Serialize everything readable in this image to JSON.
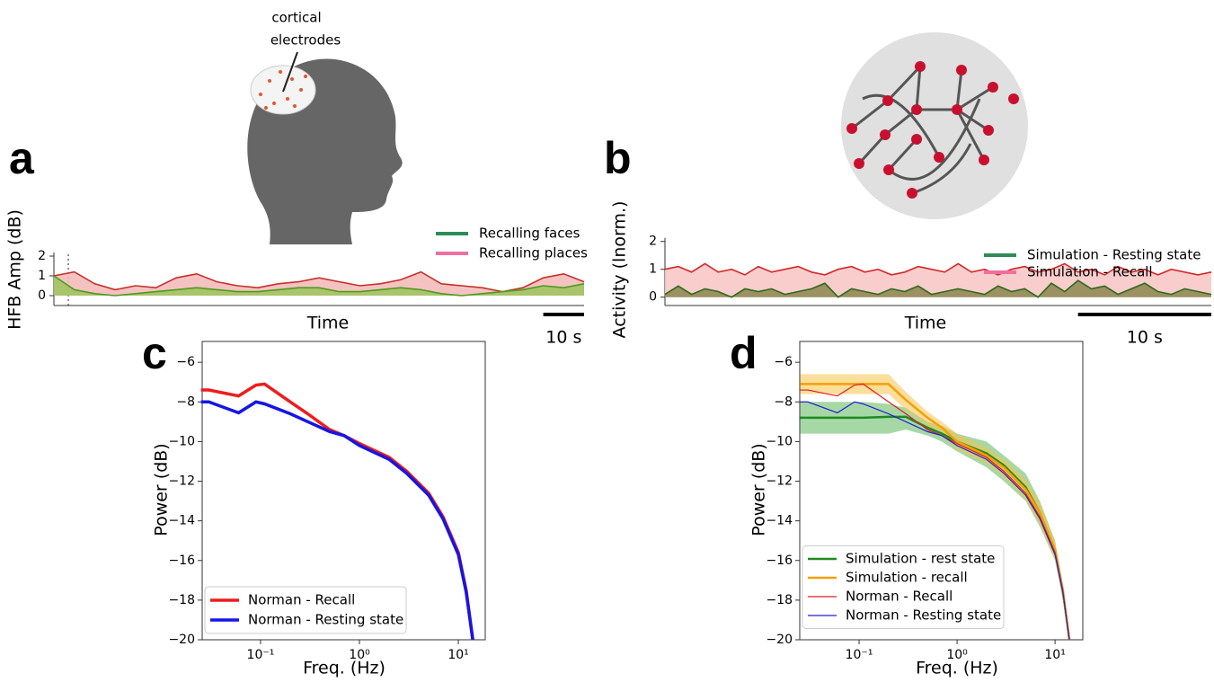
{
  "chart_data": [
    {
      "type": "area",
      "panel": "a",
      "annotation": [
        "cortical",
        "electrodes"
      ],
      "ylabel": "HFB Amp (dB)",
      "xlabel": "Time",
      "scale_bar": {
        "value": 10,
        "label": "10 s"
      },
      "x": [
        0,
        5,
        10,
        15,
        20,
        25,
        30,
        35,
        40,
        45,
        50,
        55,
        60,
        65,
        70,
        75,
        80,
        85,
        90,
        95,
        100,
        105,
        110,
        115,
        120,
        125,
        130
      ],
      "xlim": [
        0,
        130
      ],
      "ylim": [
        -0.5,
        2
      ],
      "yticks": [
        0,
        1,
        2
      ],
      "series": [
        {
          "name": "Recalling places",
          "color": "#c8302a",
          "fill": "#f2b9b6",
          "legend_color": "#f06ea0",
          "values": [
            1.0,
            1.2,
            0.6,
            0.3,
            0.5,
            0.4,
            0.9,
            1.1,
            0.7,
            0.5,
            0.4,
            0.6,
            0.7,
            0.9,
            0.7,
            0.5,
            0.6,
            0.8,
            1.2,
            0.6,
            0.5,
            0.4,
            0.2,
            0.4,
            0.9,
            1.1,
            0.7
          ]
        },
        {
          "name": "Recalling faces",
          "color": "#4f9a1f",
          "fill": "#9bc45a",
          "legend_color": "#2e8b57",
          "values": [
            1.0,
            0.3,
            0.1,
            0.0,
            0.1,
            0.2,
            0.3,
            0.4,
            0.3,
            0.2,
            0.2,
            0.3,
            0.4,
            0.4,
            0.2,
            0.2,
            0.3,
            0.4,
            0.3,
            0.1,
            0.0,
            0.1,
            0.2,
            0.3,
            0.5,
            0.4,
            0.6
          ]
        }
      ],
      "legend_order": [
        1,
        0
      ]
    },
    {
      "type": "area",
      "panel": "b",
      "ylabel": "Activity (lnorm.)",
      "xlabel": "Time",
      "scale_bar": {
        "value": 10,
        "label": "10 s"
      },
      "x": [
        0,
        1,
        2,
        3,
        4,
        5,
        6,
        7,
        8,
        9,
        10,
        11,
        12,
        13,
        14,
        15,
        16,
        17,
        18,
        19,
        20,
        21,
        22,
        23,
        24,
        25,
        26,
        27,
        28,
        29,
        30,
        31,
        32,
        33,
        34,
        35,
        36,
        37,
        38,
        39,
        40,
        41
      ],
      "xlim": [
        0,
        41
      ],
      "ylim": [
        -0.3,
        2
      ],
      "yticks": [
        0,
        1,
        2
      ],
      "series": [
        {
          "name": "Simulation - Recall",
          "color": "#d62728",
          "fill": "#f9c4c4",
          "legend_color": "#f06ea0",
          "values": [
            1.0,
            1.1,
            0.9,
            1.2,
            0.9,
            1.0,
            0.8,
            1.1,
            0.9,
            1.0,
            1.1,
            0.9,
            0.8,
            1.0,
            1.1,
            0.9,
            1.0,
            0.8,
            0.9,
            1.1,
            1.0,
            0.9,
            1.2,
            0.9,
            1.0,
            0.8,
            1.0,
            1.1,
            0.9,
            1.0,
            1.2,
            0.9,
            1.0,
            0.8,
            1.1,
            0.9,
            1.0,
            0.8,
            1.0,
            0.9,
            0.8,
            0.9
          ]
        },
        {
          "name": "Simulation - Resting state",
          "color": "#2d6a1a",
          "fill": "#8a8650",
          "legend_color": "#2e8b57",
          "values": [
            0.1,
            0.4,
            0.1,
            0.3,
            0.2,
            0.0,
            0.3,
            0.2,
            0.3,
            0.1,
            0.2,
            0.3,
            0.5,
            0.0,
            0.3,
            0.2,
            0.1,
            0.3,
            0.2,
            0.4,
            0.1,
            0.2,
            0.3,
            0.2,
            0.1,
            0.4,
            0.2,
            0.3,
            0.0,
            0.5,
            0.2,
            0.6,
            0.3,
            0.4,
            0.1,
            0.3,
            0.5,
            0.2,
            0.1,
            0.3,
            0.2,
            0.1
          ]
        }
      ],
      "legend_order": [
        1,
        0
      ]
    },
    {
      "type": "line",
      "panel": "c",
      "xlabel": "Freq. (Hz)",
      "ylabel": "Power (dB)",
      "log_x": true,
      "x": [
        0.025,
        0.03,
        0.06,
        0.09,
        0.11,
        0.2,
        0.3,
        0.5,
        0.7,
        1,
        2,
        3,
        5,
        7,
        10,
        12,
        14
      ],
      "xlim": [
        0.0257,
        18.7
      ],
      "ylim": [
        -20,
        -4.95
      ],
      "xticks": [
        {
          "value": 0.1,
          "label": "10⁻¹"
        },
        {
          "value": 1,
          "label": "10⁰"
        },
        {
          "value": 10,
          "label": "10¹"
        }
      ],
      "yticks": [
        {
          "value": -6,
          "label": "−6"
        },
        {
          "value": -8,
          "label": "−8"
        },
        {
          "value": -10,
          "label": "−10"
        },
        {
          "value": -12,
          "label": "−12"
        },
        {
          "value": -14,
          "label": "−14"
        },
        {
          "value": -16,
          "label": "−16"
        },
        {
          "value": -18,
          "label": "−18"
        },
        {
          "value": -20,
          "label": "−20"
        }
      ],
      "series": [
        {
          "name": "Norman - Recall",
          "color": "#ee1c1c",
          "width": 3.5,
          "values": [
            -7.4,
            -7.4,
            -7.7,
            -7.15,
            -7.1,
            -8.0,
            -8.6,
            -9.4,
            -9.7,
            -10.1,
            -10.8,
            -11.5,
            -12.6,
            -13.8,
            -15.6,
            -17.5,
            -20
          ]
        },
        {
          "name": "Norman - Resting state",
          "color": "#1515e6",
          "width": 3.5,
          "values": [
            -8.0,
            -8.0,
            -8.55,
            -8.0,
            -8.1,
            -8.6,
            -9.0,
            -9.5,
            -9.7,
            -10.2,
            -10.9,
            -11.6,
            -12.7,
            -13.9,
            -15.7,
            -17.6,
            -20
          ]
        }
      ]
    },
    {
      "type": "line",
      "panel": "d",
      "xlabel": "Freq. (Hz)",
      "ylabel": "Power (dB)",
      "log_x": true,
      "x": [
        0.025,
        0.03,
        0.06,
        0.09,
        0.11,
        0.2,
        0.3,
        0.5,
        0.7,
        1,
        2,
        3,
        5,
        7,
        10,
        12,
        14
      ],
      "xlim": [
        0.0248,
        19.2
      ],
      "ylim": [
        -20,
        -4.95
      ],
      "xticks": [
        {
          "value": 0.1,
          "label": "10⁻¹"
        },
        {
          "value": 1,
          "label": "10⁰"
        },
        {
          "value": 10,
          "label": "10¹"
        }
      ],
      "yticks": [
        {
          "value": -6,
          "label": "−6"
        },
        {
          "value": -8,
          "label": "−8"
        },
        {
          "value": -10,
          "label": "−10"
        },
        {
          "value": -12,
          "label": "−12"
        },
        {
          "value": -14,
          "label": "−14"
        },
        {
          "value": -16,
          "label": "−16"
        },
        {
          "value": -18,
          "label": "−18"
        },
        {
          "value": -20,
          "label": "−20"
        }
      ],
      "series": [
        {
          "name": "Simulation - rest state",
          "color": "#1f8a1f",
          "width": 2.5,
          "band_color": "#5cb85c",
          "values": [
            -8.8,
            -8.8,
            -8.8,
            -8.8,
            -8.8,
            -8.75,
            -8.75,
            -9.3,
            -9.6,
            -10.0,
            -10.6,
            -11.2,
            -12.3,
            -13.6,
            -15.5,
            -17.5,
            -20
          ],
          "upper": [
            -8.0,
            -8.0,
            -8.0,
            -8.0,
            -8.0,
            -8.1,
            -8.3,
            -9.0,
            -9.2,
            -9.6,
            -10.0,
            -10.7,
            -11.6,
            -13.0,
            -15.0,
            -17.2,
            -20
          ],
          "lower": [
            -9.6,
            -9.6,
            -9.6,
            -9.6,
            -9.6,
            -9.6,
            -9.4,
            -9.7,
            -10.0,
            -10.5,
            -11.3,
            -12.0,
            -13.0,
            -14.3,
            -16.0,
            -18.0,
            -20
          ]
        },
        {
          "name": "Simulation - recall",
          "color": "#f5a000",
          "width": 2.5,
          "band_color": "#f7c34a",
          "values": [
            -7.1,
            -7.1,
            -7.1,
            -7.1,
            -7.1,
            -7.1,
            -7.9,
            -8.8,
            -9.3,
            -10.0,
            -10.7,
            -11.3,
            -12.4,
            -13.6,
            -15.5,
            -17.5,
            -20
          ],
          "upper": [
            -6.6,
            -6.6,
            -6.6,
            -6.6,
            -6.6,
            -6.6,
            -7.5,
            -8.5,
            -9.0,
            -9.6,
            -10.3,
            -10.9,
            -11.9,
            -13.1,
            -15.0,
            -17.2,
            -20
          ],
          "lower": [
            -7.6,
            -7.6,
            -7.6,
            -7.6,
            -7.6,
            -7.6,
            -8.4,
            -9.2,
            -9.7,
            -10.4,
            -11.1,
            -11.8,
            -12.9,
            -14.2,
            -16.0,
            -17.9,
            -20
          ]
        },
        {
          "name": "Norman - Recall",
          "color": "#e41a1c",
          "width": 1.2,
          "values": [
            -7.4,
            -7.4,
            -7.7,
            -7.15,
            -7.1,
            -8.0,
            -8.6,
            -9.4,
            -9.7,
            -10.1,
            -10.8,
            -11.5,
            -12.6,
            -13.8,
            -15.6,
            -17.5,
            -20
          ]
        },
        {
          "name": "Norman - Resting state",
          "color": "#2222cc",
          "width": 1.2,
          "values": [
            -8.0,
            -8.0,
            -8.55,
            -8.0,
            -8.1,
            -8.6,
            -9.0,
            -9.5,
            -9.7,
            -10.2,
            -10.9,
            -11.6,
            -12.7,
            -13.9,
            -15.7,
            -17.6,
            -20
          ]
        }
      ]
    }
  ]
}
